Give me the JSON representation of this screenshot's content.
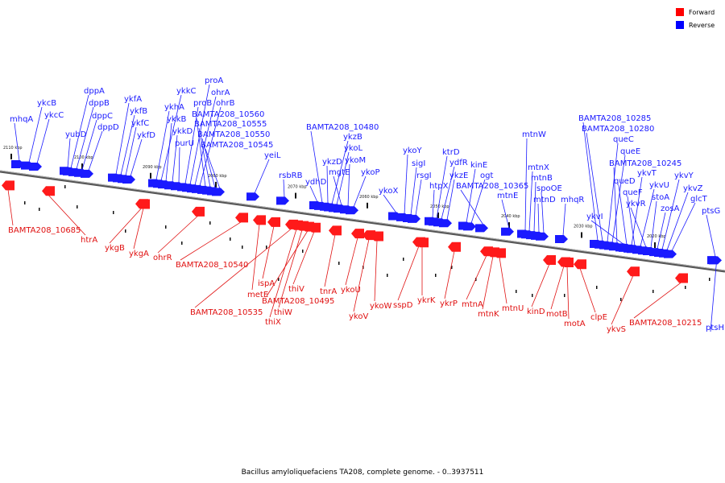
{
  "legend": {
    "items": [
      {
        "label": "Forward",
        "color": "#ff0000"
      },
      {
        "label": "Reverse",
        "color": "#0000ff"
      }
    ]
  },
  "caption": "Bacillus amyloliquefaciens TA208, complete genome. - 0..3937511",
  "ticks": [
    "2110 kbp",
    "2100 kbp",
    "2090 kbp",
    "2080 kbp",
    "2070 kbp",
    "2060 kbp",
    "2050 kbp",
    "2040 kbp",
    "2030 kbp",
    "2020 kbp"
  ],
  "reverse_labels": [
    "mhqA",
    "ykcB",
    "ykcC",
    "yubD",
    "dppA",
    "dppB",
    "dppC",
    "dppD",
    "ykfA",
    "ykfB",
    "ykfC",
    "ykfD",
    "ykhA",
    "ykkC",
    "ykkB",
    "ykkD",
    "purU",
    "proB",
    "proA",
    "ohrA",
    "ohrB",
    "BAMTA208_10560",
    "BAMTA208_10555",
    "BAMTA208_10550",
    "BAMTA208_10545",
    "yeiL",
    "rsbRB",
    "ydhD",
    "BAMTA208_10480",
    "ykzB",
    "ykzD",
    "ykoL",
    "mgtE",
    "ykoM",
    "ykoP",
    "ykoX",
    "ykoY",
    "sigI",
    "rsgI",
    "htpX",
    "ktrD",
    "ydfR",
    "ykzE",
    "kinE",
    "ogt",
    "BAMTA208_10365",
    "mtnE",
    "mtnW",
    "mtnX",
    "mtnB",
    "mtnD",
    "spoOE",
    "mhqR",
    "BAMTA208_10285",
    "BAMTA208_10280",
    "queC",
    "queE",
    "BAMTA208_10245",
    "ykvI",
    "queD",
    "ykvT",
    "queF",
    "ykvU",
    "ykvR",
    "stoA",
    "zosA",
    "ykvY",
    "ykvZ",
    "glcT",
    "ptsG",
    "ptsH"
  ],
  "forward_labels": [
    "BAMTA208_10685",
    "htrA",
    "ykgB",
    "ykgA",
    "ohrR",
    "BAMTA208_10540",
    "metE",
    "ispA",
    "BAMTA208_10535",
    "thiX",
    "thiW",
    "BAMTA208_10495",
    "thiV",
    "tnrA",
    "ykoU",
    "ykoV",
    "ykoW",
    "sspD",
    "ykrK",
    "ykrP",
    "mtnA",
    "mtnK",
    "mtnU",
    "kinD",
    "motB",
    "motA",
    "clpE",
    "ykvS",
    "BAMTA208_10215"
  ]
}
